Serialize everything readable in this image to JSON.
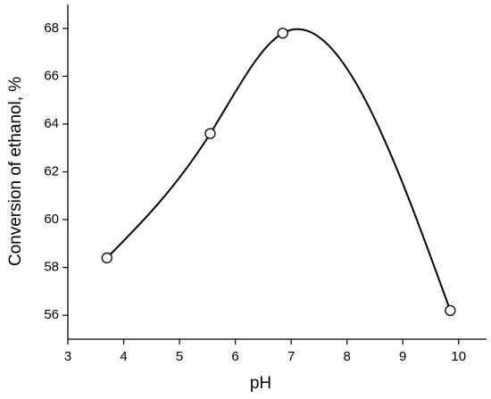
{
  "chart_data": {
    "type": "scatter",
    "x_label": "pH",
    "y_label": "Conversion of ethanol, %",
    "x": [
      3.7,
      5.55,
      6.85,
      9.85
    ],
    "series": [
      {
        "color": "#000000",
        "values": [
          58.4,
          63.6,
          67.8,
          56.2
        ]
      }
    ],
    "xlim": [
      3,
      10.5
    ],
    "xticks": [
      3,
      4,
      5,
      6,
      7,
      8,
      9,
      10
    ],
    "ylim": [
      55,
      69
    ],
    "yticks": [
      56,
      58,
      60,
      62,
      64,
      66,
      68
    ],
    "line": "smooth",
    "grid": false
  }
}
